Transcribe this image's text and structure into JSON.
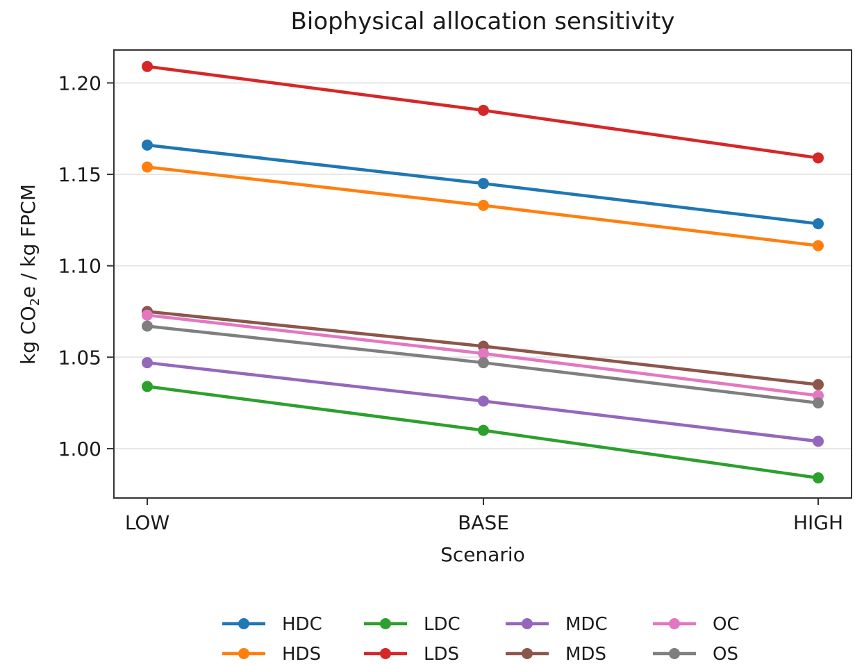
{
  "chart_data": {
    "type": "line",
    "title": "Biophysical allocation sensitivity",
    "xlabel": "Scenario",
    "ylabel": {
      "pre": "kg CO",
      "sub": "2",
      "post": "e / kg FPCM"
    },
    "categories": [
      "LOW",
      "BASE",
      "HIGH"
    ],
    "ylim": [
      0.973,
      1.218
    ],
    "yticks": [
      1.0,
      1.05,
      1.1,
      1.15,
      1.2
    ],
    "ytick_labels": [
      "1.00",
      "1.05",
      "1.10",
      "1.15",
      "1.20"
    ],
    "grid": "horizontal",
    "legend_position": "bottom-center",
    "series": [
      {
        "name": "HDC",
        "color": "#1f77b4",
        "values": [
          1.166,
          1.145,
          1.123
        ]
      },
      {
        "name": "HDS",
        "color": "#ff7f0e",
        "values": [
          1.154,
          1.133,
          1.111
        ]
      },
      {
        "name": "LDC",
        "color": "#2ca02c",
        "values": [
          1.034,
          1.01,
          0.984
        ]
      },
      {
        "name": "LDS",
        "color": "#d62728",
        "values": [
          1.209,
          1.185,
          1.159
        ]
      },
      {
        "name": "MDC",
        "color": "#9467bd",
        "values": [
          1.047,
          1.026,
          1.004
        ]
      },
      {
        "name": "MDS",
        "color": "#8c564b",
        "values": [
          1.075,
          1.056,
          1.035
        ]
      },
      {
        "name": "OC",
        "color": "#e377c2",
        "values": [
          1.073,
          1.052,
          1.029
        ]
      },
      {
        "name": "OS",
        "color": "#7f7f7f",
        "values": [
          1.067,
          1.047,
          1.025
        ]
      }
    ]
  }
}
